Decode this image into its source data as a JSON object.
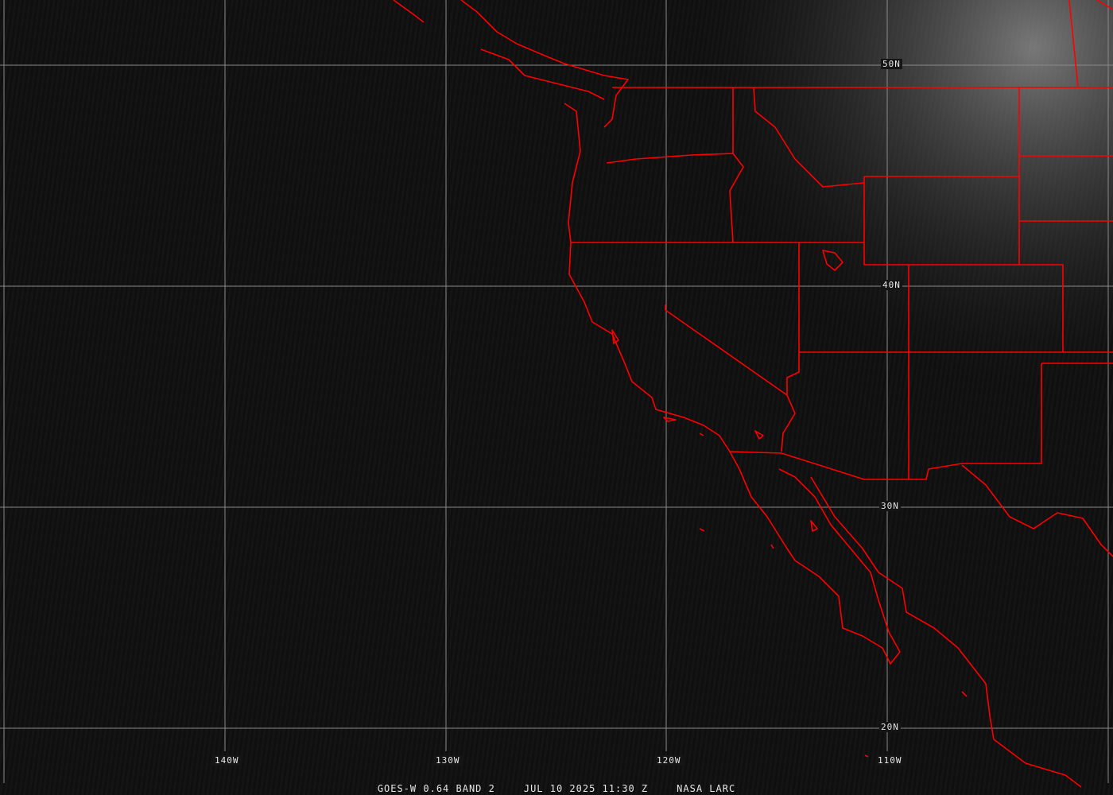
{
  "lat_labels": [
    "50N",
    "40N",
    "30N",
    "20N"
  ],
  "lon_labels": [
    "140W",
    "130W",
    "120W",
    "110W"
  ],
  "caption": {
    "satellite": "GOES-W 0.64 BAND 2",
    "datetime": "JUL 10 2025 11:30 Z",
    "credit": "NASA LARC"
  },
  "colors": {
    "background": "#0f0f0f",
    "grid": "#8a8a8a",
    "borders": "#ff0000",
    "text": "#e6e6e6"
  }
}
